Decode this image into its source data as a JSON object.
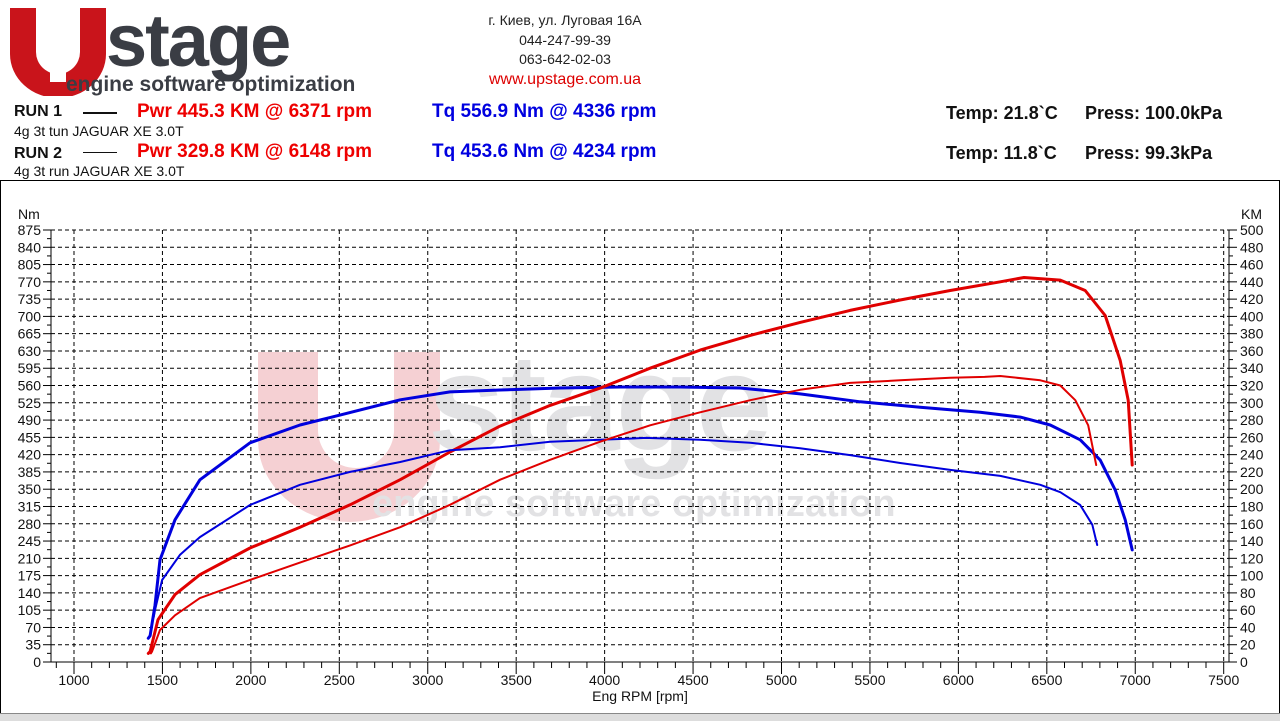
{
  "header": {
    "logo_text": "UPstage",
    "logo_tagline": "engine software optimization",
    "address": "г. Киев, ул. Луговая 16А",
    "phone1": "044-247-99-39",
    "phone2": "063-642-02-03",
    "website": "www.upstage.com.ua"
  },
  "runs": [
    {
      "label": "RUN 1",
      "pwr": "Pwr  445.3 KM @ 6371 rpm",
      "tq": "Tq 556.9 Nm @ 4336 rpm",
      "desc": "4g 3t tun JAGUAR XE 3.0T",
      "temp": "Temp: 21.8`C",
      "press": "Press: 100.0kPa"
    },
    {
      "label": "RUN 2",
      "pwr": "Pwr  329.8 KM @ 6148 rpm",
      "tq": "Tq 453.6 Nm @ 4234 rpm",
      "desc": "4g 3t run JAGUAR XE 3.0T",
      "temp": "Temp: 11.8`C",
      "press": "Press: 99.3kPa"
    }
  ],
  "colors": {
    "power": "#e00000",
    "torque": "#0000dd",
    "watermark_red": "#f5d0d3",
    "watermark_gray": "#e2e2e4"
  },
  "chart_data": {
    "type": "line",
    "xlabel": "Eng RPM [rpm]",
    "ylabel_left": "Nm",
    "ylabel_right": "KM",
    "xlim": [
      870,
      7530
    ],
    "ylim_left": [
      0,
      875
    ],
    "ylim_right": [
      0,
      500
    ],
    "x_ticks": [
      1000,
      1500,
      2000,
      2500,
      3000,
      3500,
      4000,
      4500,
      5000,
      5500,
      6000,
      6500,
      7000,
      7500
    ],
    "y_left_ticks": [
      0,
      35,
      70,
      105,
      140,
      175,
      210,
      245,
      280,
      315,
      350,
      385,
      420,
      455,
      490,
      525,
      560,
      595,
      630,
      665,
      700,
      735,
      770,
      805,
      840,
      875
    ],
    "y_right_ticks": [
      0,
      20,
      40,
      60,
      80,
      100,
      120,
      140,
      160,
      180,
      200,
      220,
      240,
      260,
      280,
      300,
      320,
      340,
      360,
      380,
      400,
      420,
      440,
      460,
      480,
      500
    ],
    "grid": true,
    "series": [
      {
        "run": "RUN 1",
        "quantity": "torque",
        "axis": "left",
        "width": 3,
        "x": [
          1420,
          1430,
          1458,
          1486,
          1571,
          1712,
          1995,
          2278,
          2504,
          2844,
          3126,
          3409,
          3748,
          4088,
          4336,
          4427,
          4766,
          5105,
          5445,
          5784,
          6123,
          6350,
          6519,
          6689,
          6802,
          6887,
          6943,
          6983
        ],
        "y": [
          48,
          53,
          115,
          207,
          288,
          369,
          444,
          480,
          500,
          531,
          547,
          551,
          555,
          557,
          557,
          557,
          555,
          543,
          527,
          516,
          506,
          496,
          480,
          450,
          409,
          348,
          288,
          227
        ]
      },
      {
        "run": "RUN 1",
        "quantity": "power",
        "axis": "right",
        "width": 3,
        "x": [
          1420,
          1430,
          1475,
          1571,
          1712,
          1995,
          2278,
          2561,
          2844,
          3126,
          3409,
          3692,
          3975,
          4257,
          4540,
          4823,
          5105,
          5388,
          5671,
          5954,
          6237,
          6371,
          6576,
          6717,
          6830,
          6915,
          6960,
          6983
        ],
        "y": [
          10,
          12,
          49,
          78,
          101,
          132,
          156,
          182,
          211,
          243,
          273,
          297,
          317,
          340,
          361,
          378,
          393,
          407,
          419,
          430,
          440,
          445,
          442,
          430,
          401,
          349,
          303,
          228
        ]
      },
      {
        "run": "RUN 2",
        "quantity": "torque",
        "axis": "left",
        "width": 2,
        "x": [
          1450,
          1458,
          1498,
          1599,
          1712,
          1995,
          2278,
          2561,
          2844,
          3126,
          3409,
          3692,
          3975,
          4234,
          4540,
          4823,
          5105,
          5388,
          5671,
          5954,
          6237,
          6463,
          6576,
          6689,
          6757,
          6785
        ],
        "y": [
          90,
          105,
          166,
          217,
          253,
          318,
          359,
          385,
          405,
          429,
          435,
          446,
          450,
          454,
          450,
          444,
          433,
          419,
          403,
          389,
          377,
          359,
          344,
          318,
          278,
          237
        ]
      },
      {
        "run": "RUN 2",
        "quantity": "power",
        "axis": "right",
        "width": 2,
        "x": [
          1435,
          1441,
          1486,
          1571,
          1712,
          1995,
          2278,
          2561,
          2844,
          3126,
          3409,
          3692,
          3975,
          4257,
          4540,
          4823,
          5105,
          5388,
          5671,
          5954,
          6148,
          6237,
          6463,
          6576,
          6661,
          6734,
          6779
        ],
        "y": [
          10,
          12,
          37,
          54,
          74,
          95,
          115,
          135,
          156,
          182,
          211,
          234,
          255,
          274,
          289,
          303,
          315,
          323,
          326,
          329,
          330,
          331,
          326,
          320,
          303,
          274,
          228
        ]
      }
    ]
  }
}
